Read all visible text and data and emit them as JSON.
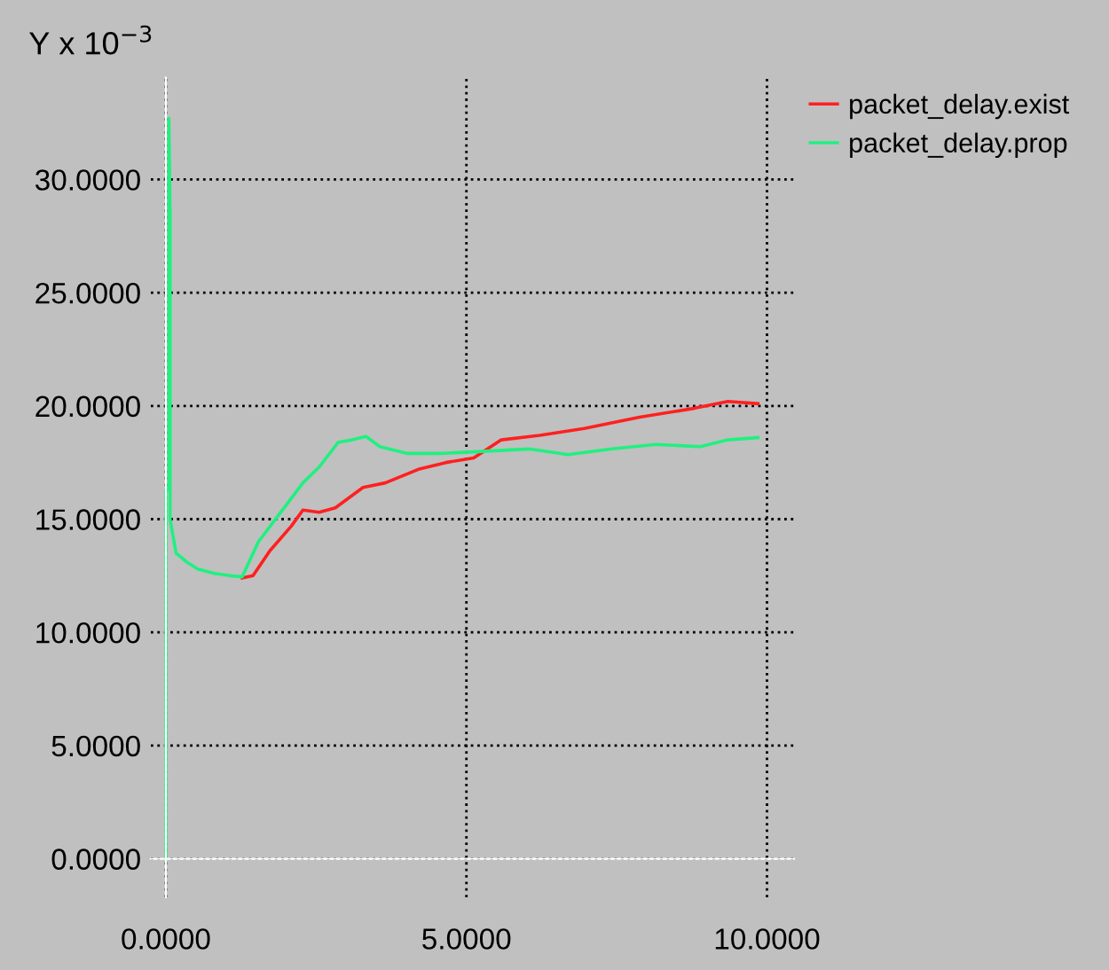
{
  "chart_data": {
    "type": "line",
    "ylabel": "Y x 10$^{−3}$",
    "xlim": [
      -0.25,
      10.45
    ],
    "ylim": [
      -1.7,
      34.5
    ],
    "xticks": [
      {
        "value": 0,
        "label": "0.0000"
      },
      {
        "value": 5,
        "label": "5.0000"
      },
      {
        "value": 10,
        "label": "10.0000"
      }
    ],
    "yticks": [
      {
        "value": 0,
        "label": "0.0000"
      },
      {
        "value": 5,
        "label": "5.0000"
      },
      {
        "value": 10,
        "label": "10.0000"
      },
      {
        "value": 15,
        "label": "15.0000"
      },
      {
        "value": 20,
        "label": "20.0000"
      },
      {
        "value": 25,
        "label": "25.0000"
      },
      {
        "value": 30,
        "label": "30.0000"
      }
    ],
    "grid": true,
    "legend": "top right",
    "line_style": "solid",
    "marker": "none",
    "series": [
      {
        "name": "packet_delay.exist",
        "color": "#ff2020",
        "x": [
          1.27,
          1.45,
          1.73,
          2.09,
          2.28,
          2.55,
          2.82,
          3.28,
          3.65,
          4.2,
          4.66,
          5.12,
          5.58,
          6.22,
          6.96,
          7.88,
          8.8,
          9.35,
          9.85
        ],
        "values": [
          12.4,
          12.5,
          13.6,
          14.7,
          15.4,
          15.3,
          15.5,
          16.4,
          16.6,
          17.2,
          17.5,
          17.7,
          18.5,
          18.7,
          19.0,
          19.5,
          19.9,
          20.2,
          20.1
        ]
      },
      {
        "name": "packet_delay.prop",
        "color": "#20f080",
        "x": [
          0,
          0,
          0.05,
          0.05,
          0.07,
          0.07,
          0.17,
          0.35,
          0.53,
          0.81,
          1.08,
          1.27,
          1.54,
          1.91,
          2.28,
          2.55,
          2.87,
          3.1,
          3.33,
          3.56,
          4.02,
          4.57,
          5.12,
          6.04,
          6.69,
          7.42,
          8.15,
          8.89,
          9.35,
          9.85
        ],
        "values": [
          0,
          16.3,
          16.3,
          32.7,
          28.5,
          15.0,
          13.5,
          13.1,
          12.8,
          12.6,
          12.5,
          12.45,
          14.0,
          15.3,
          16.6,
          17.3,
          18.4,
          18.5,
          18.65,
          18.2,
          17.9,
          17.9,
          17.97,
          18.1,
          17.85,
          18.1,
          18.3,
          18.2,
          18.5,
          18.6
        ]
      }
    ]
  }
}
